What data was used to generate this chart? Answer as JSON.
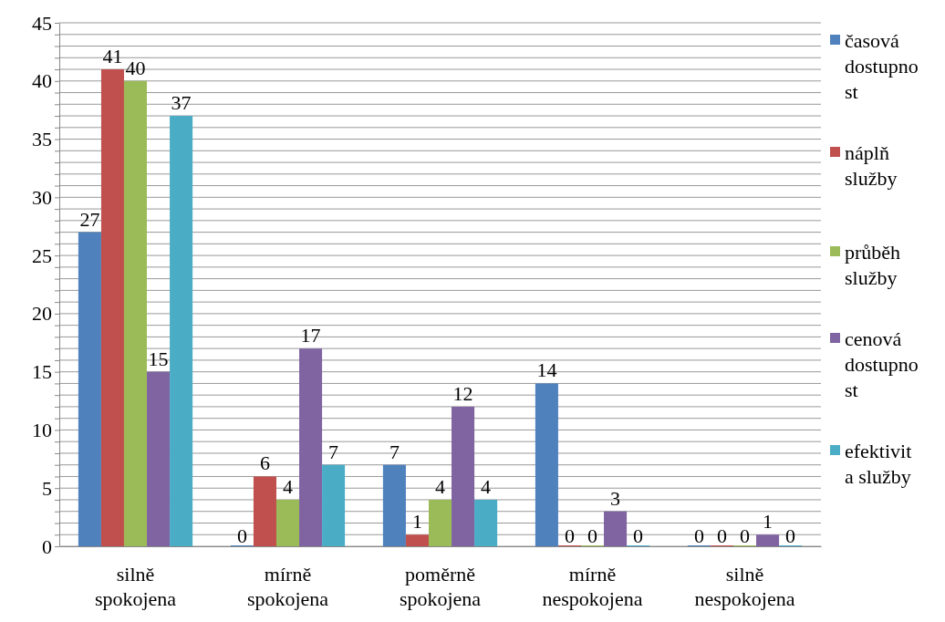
{
  "chart_data": {
    "type": "bar",
    "categories": [
      "silně spokojena",
      "mírně spokojena",
      "poměrně spokojena",
      "mírně nespokojena",
      "silně nespokojena"
    ],
    "series": [
      {
        "name": "časová dostupnost",
        "color": "#4f81bd",
        "values": [
          27,
          0,
          7,
          14,
          0
        ]
      },
      {
        "name": "náplň služby",
        "color": "#c0504d",
        "values": [
          41,
          6,
          1,
          0,
          0
        ]
      },
      {
        "name": "průběh služby",
        "color": "#9bbb59",
        "values": [
          40,
          4,
          4,
          0,
          0
        ]
      },
      {
        "name": "cenová dostupnost",
        "color": "#8064a2",
        "values": [
          15,
          17,
          12,
          3,
          1
        ]
      },
      {
        "name": "efektivita služby",
        "color": "#4bacc6",
        "values": [
          37,
          7,
          4,
          0,
          0
        ]
      }
    ],
    "ylim": [
      0,
      45
    ],
    "yticks": [
      0,
      {
        "value": 1,
        "label": null
      },
      {
        "value": 2,
        "label": null
      },
      {
        "value": 3,
        "label": null
      },
      {
        "value": 4,
        "label": null
      },
      5,
      {
        "value": 6,
        "label": null
      },
      {
        "value": 7,
        "label": null
      },
      {
        "value": 8,
        "label": null
      },
      {
        "value": 9,
        "label": null
      },
      10,
      {
        "value": 11,
        "label": null
      },
      {
        "value": 12,
        "label": null
      },
      {
        "value": 13,
        "label": null
      },
      {
        "value": 14,
        "label": null
      },
      15,
      {
        "value": 16,
        "label": null
      },
      {
        "value": 17,
        "label": null
      },
      {
        "value": 18,
        "label": null
      },
      {
        "value": 19,
        "label": null
      },
      20,
      {
        "value": 21,
        "label": null
      },
      {
        "value": 22,
        "label": null
      },
      {
        "value": 23,
        "label": null
      },
      {
        "value": 24,
        "label": null
      },
      25,
      {
        "value": 26,
        "label": null
      },
      {
        "value": 27,
        "label": null
      },
      {
        "value": 28,
        "label": null
      },
      {
        "value": 29,
        "label": null
      },
      30,
      {
        "value": 31,
        "label": null
      },
      {
        "value": 32,
        "label": null
      },
      {
        "value": 33,
        "label": null
      },
      {
        "value": 34,
        "label": null
      },
      35,
      {
        "value": 36,
        "label": null
      },
      {
        "value": 37,
        "label": null
      },
      {
        "value": 38,
        "label": null
      },
      {
        "value": 39,
        "label": null
      },
      40,
      {
        "value": 41,
        "label": null
      },
      {
        "value": 42,
        "label": null
      },
      {
        "value": 43,
        "label": null
      },
      {
        "value": 44,
        "label": null
      },
      45
    ],
    "grid": "y",
    "legend": "right",
    "data_labels": true
  }
}
